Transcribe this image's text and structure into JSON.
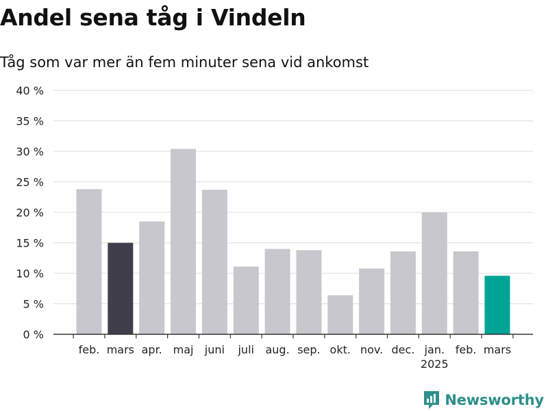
{
  "header": {
    "title": "Andel sena tåg i Vindeln",
    "subtitle": "Tåg som var mer än fem minuter sena vid ankomst"
  },
  "brand": {
    "name": "Newsworthy",
    "icon": "newsworthy-logo-icon",
    "color": "#2e8f8a"
  },
  "colors": {
    "default": "#c8c7cd",
    "previous_year": "#3f3e4a",
    "latest": "#00a497",
    "grid": "#dddddd",
    "axis": "#333333"
  },
  "chart_data": {
    "type": "bar",
    "title": "Andel sena tåg i Vindeln",
    "subtitle": "Tåg som var mer än fem minuter sena vid ankomst",
    "xlabel": "",
    "ylabel": "",
    "ylim": [
      0,
      40
    ],
    "yticks": [
      0,
      5,
      10,
      15,
      20,
      25,
      30,
      35,
      40
    ],
    "ytick_labels": [
      "0 %",
      "5 %",
      "10 %",
      "15 %",
      "20 %",
      "25 %",
      "30 %",
      "35 %",
      "40 %"
    ],
    "grid": true,
    "categories": [
      "feb.",
      "mars",
      "apr.",
      "maj",
      "juni",
      "juli",
      "aug.",
      "sep.",
      "okt.",
      "nov.",
      "dec.",
      "jan.",
      "feb.",
      "mars"
    ],
    "year_labels": [
      "",
      "",
      "",
      "",
      "",
      "",
      "",
      "",
      "",
      "",
      "",
      "2025",
      "",
      ""
    ],
    "values": [
      23.8,
      15.0,
      18.5,
      30.4,
      23.7,
      11.1,
      14.0,
      13.8,
      6.4,
      10.8,
      13.6,
      20.0,
      13.6,
      9.6
    ],
    "highlight": [
      "default",
      "previous_year",
      "default",
      "default",
      "default",
      "default",
      "default",
      "default",
      "default",
      "default",
      "default",
      "default",
      "default",
      "latest"
    ]
  }
}
